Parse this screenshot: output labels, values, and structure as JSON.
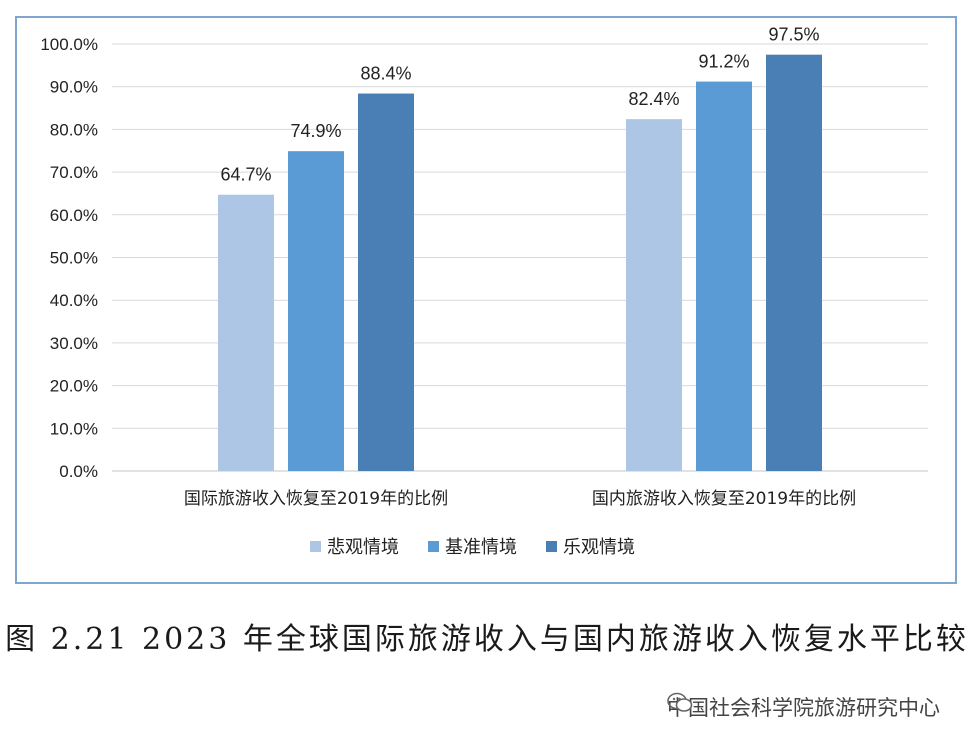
{
  "chart_data": {
    "type": "bar",
    "categories": [
      "国际旅游收入恢复至2019年的比例",
      "国内旅游收入恢复至2019年的比例"
    ],
    "series": [
      {
        "name": "悲观情境",
        "values": [
          64.7,
          82.4
        ],
        "color": "#adc6e5"
      },
      {
        "name": "基准情境",
        "values": [
          74.9,
          91.2
        ],
        "color": "#5b9bd5"
      },
      {
        "name": "乐观情境",
        "values": [
          88.4,
          97.5
        ],
        "color": "#4a7fb5"
      }
    ],
    "data_labels": [
      [
        "64.7%",
        "82.4%"
      ],
      [
        "74.9%",
        "91.2%"
      ],
      [
        "88.4%",
        "97.5%"
      ]
    ],
    "yticks": [
      "0.0%",
      "10.0%",
      "20.0%",
      "30.0%",
      "40.0%",
      "50.0%",
      "60.0%",
      "70.0%",
      "80.0%",
      "90.0%",
      "100.0%"
    ],
    "ylim": [
      0,
      100
    ],
    "grid": true,
    "legend_position": "bottom",
    "title": "",
    "xlabel": "",
    "ylabel": ""
  },
  "caption": "图 2.21 2023 年全球国际旅游收入与国内旅游收入恢复水平比较",
  "source": "中国社会科学院旅游研究中心",
  "colors": {
    "grid": "#d9d9d9",
    "frame": "#7ea6cf"
  }
}
